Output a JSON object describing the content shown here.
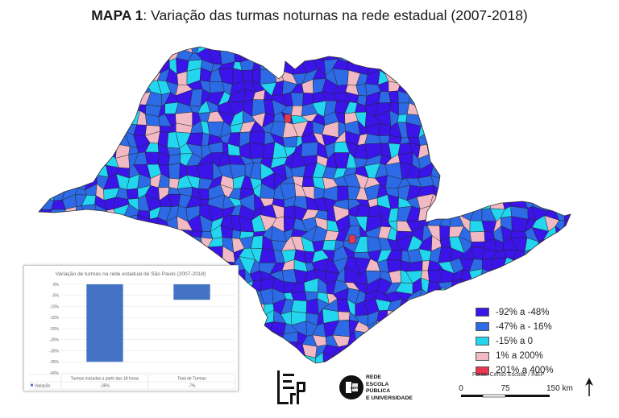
{
  "title": {
    "bold": "MAPA 1",
    "rest": ": Variação das turmas noturnas na rede estadual (2007-2018)"
  },
  "colors": {
    "class1": "#3a14e8",
    "class2": "#2c6ae6",
    "class3": "#22d6ef",
    "class4": "#f1b9c4",
    "class5": "#e8374f",
    "bar": "#4472c4"
  },
  "legend": {
    "items": [
      {
        "label": "-92% a -48%",
        "color": "#3a14e8"
      },
      {
        "label": "-47% a - 16%",
        "color": "#2c6ae6"
      },
      {
        "label": "-15% a 0",
        "color": "#22d6ef"
      },
      {
        "label": "1% a 200%",
        "color": "#f1b9c4"
      },
      {
        "label": "201% a 400%",
        "color": "#e8374f"
      }
    ]
  },
  "source": "Fonte: Censo Escolar / INEP",
  "scale": {
    "labels": [
      "0",
      "75",
      "150 km"
    ]
  },
  "logos": {
    "lepp_text": "LEPP",
    "repu_badge": "REPU",
    "repu_lines": [
      "REDE",
      "ESCOLA",
      "PÚBLICA",
      "E UNIVERSIDADE"
    ]
  },
  "chart_data": {
    "type": "bar",
    "title": "Variação de turmas na rede estadual de São Paulo (2007-2018)",
    "categories": [
      "Turmas iniciadas a partir das 18 horas",
      "Total de Turmas"
    ],
    "series": [
      {
        "name": "Variação",
        "values": [
          -35,
          -7
        ]
      }
    ],
    "table_values": [
      "-35%",
      "-7%"
    ],
    "ylim": [
      -40,
      0
    ],
    "ytick_labels": [
      "0%",
      "-5%",
      "-10%",
      "-15%",
      "-20%",
      "-25%",
      "-30%",
      "-35%",
      "-40%"
    ],
    "grid": true,
    "legend": "table-left"
  }
}
